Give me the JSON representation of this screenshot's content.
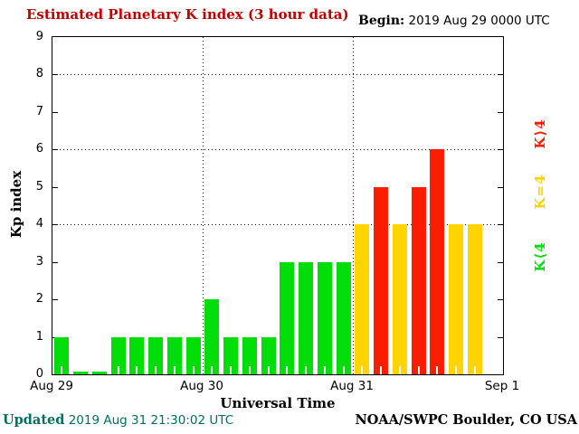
{
  "header": {
    "title": "Estimated Planetary K index (3 hour data)",
    "begin_label": "Begin:",
    "begin_value": "2019 Aug 29 0000 UTC"
  },
  "chart_data": {
    "type": "bar",
    "title": "Estimated Planetary K index (3 hour data)",
    "xlabel": "Universal Time",
    "ylabel": "Kp index",
    "ylim": [
      0,
      9
    ],
    "yticks": [
      0,
      1,
      2,
      3,
      4,
      5,
      6,
      7,
      8,
      9
    ],
    "grid_y": [
      4,
      6,
      8
    ],
    "grid": "dotted",
    "hours_per_bar": 3,
    "x_day_labels": [
      "Aug 29",
      "Aug 30",
      "Aug 31",
      "Sep 1"
    ],
    "series": [
      {
        "day": "Aug 29",
        "values": [
          1,
          0,
          0,
          1,
          1,
          1,
          1,
          1
        ]
      },
      {
        "day": "Aug 30",
        "values": [
          2,
          1,
          1,
          1,
          3,
          3,
          3,
          3
        ]
      },
      {
        "day": "Aug 31",
        "values": [
          4,
          5,
          4,
          5,
          6,
          4,
          4
        ]
      }
    ],
    "color_rule": {
      "below_4": "#00dd09",
      "equal_4": "#ffd400",
      "above_4": "#fa1e00"
    },
    "legend_position": "right-rotated"
  },
  "legend": {
    "items": [
      {
        "label": "K⟩4",
        "color": "#fa1e00"
      },
      {
        "label": "K=4",
        "color": "#ffd400"
      },
      {
        "label": "K⟨4",
        "color": "#00dd09"
      }
    ]
  },
  "footer": {
    "updated_label": "Updated",
    "updated_value": "2019 Aug 31 21:30:02 UTC",
    "credit": "NOAA/SWPC Boulder, CO USA"
  },
  "colors": {
    "title_text": "#c00000",
    "updated_text": "#007060",
    "axis_text": "#000000",
    "background": "#ffffff"
  }
}
